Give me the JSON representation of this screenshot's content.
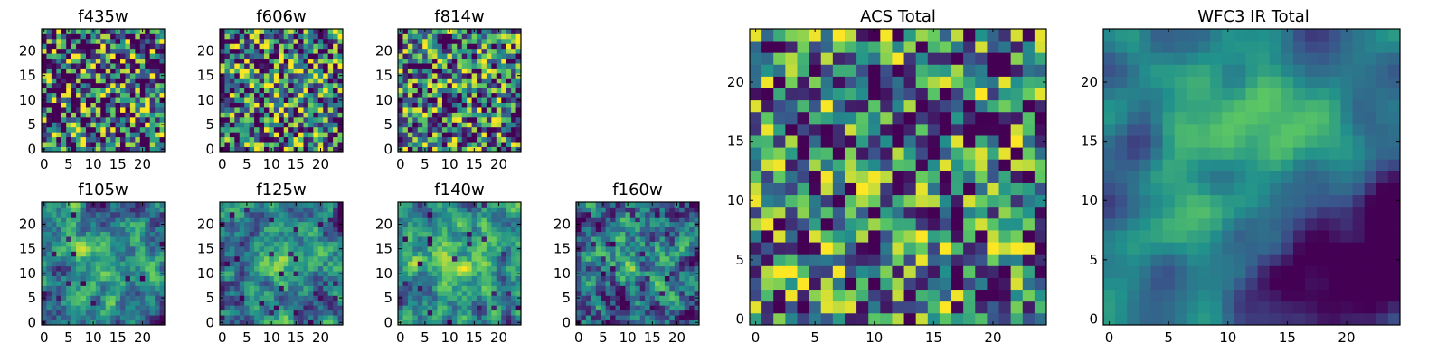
{
  "figure": {
    "background": "#ffffff",
    "colormap": "viridis",
    "colormap_stops": [
      "#440154",
      "#3b528b",
      "#21918c",
      "#5ec962",
      "#fde725"
    ]
  },
  "chart_data": [
    {
      "type": "heatmap",
      "title": "f435w",
      "size": 25,
      "xticks": [
        0,
        5,
        10,
        15,
        20
      ],
      "yticks": [
        0,
        5,
        10,
        15,
        20
      ],
      "xlim": [
        0,
        24
      ],
      "ylim": [
        0,
        24
      ],
      "seed": 11,
      "smooth": 0.1,
      "bright_bias": 0.55,
      "dark_frac": 0.05,
      "blob": null
    },
    {
      "type": "heatmap",
      "title": "f606w",
      "size": 25,
      "xticks": [
        0,
        5,
        10,
        15,
        20
      ],
      "yticks": [
        0,
        5,
        10,
        15,
        20
      ],
      "xlim": [
        0,
        24
      ],
      "ylim": [
        0,
        24
      ],
      "seed": 23,
      "smooth": 0.15,
      "bright_bias": 0.6,
      "dark_frac": 0.04,
      "blob": [
        13,
        12,
        3,
        0.15
      ]
    },
    {
      "type": "heatmap",
      "title": "f814w",
      "size": 25,
      "xticks": [
        0,
        5,
        10,
        15,
        20
      ],
      "yticks": [
        0,
        5,
        10,
        15,
        20
      ],
      "xlim": [
        0,
        24
      ],
      "ylim": [
        0,
        24
      ],
      "seed": 37,
      "smooth": 0.15,
      "bright_bias": 0.6,
      "dark_frac": 0.04,
      "blob": null
    },
    {
      "type": "heatmap",
      "title": "f105w",
      "size": 25,
      "xticks": [
        0,
        5,
        10,
        15,
        20
      ],
      "yticks": [
        0,
        5,
        10,
        15,
        20
      ],
      "xlim": [
        0,
        24
      ],
      "ylim": [
        0,
        24
      ],
      "seed": 41,
      "smooth": 0.55,
      "bright_bias": 0.55,
      "dark_frac": 0.03,
      "blob": [
        13,
        12,
        5,
        0.25
      ]
    },
    {
      "type": "heatmap",
      "title": "f125w",
      "size": 25,
      "xticks": [
        0,
        5,
        10,
        15,
        20
      ],
      "yticks": [
        0,
        5,
        10,
        15,
        20
      ],
      "xlim": [
        0,
        24
      ],
      "ylim": [
        0,
        24
      ],
      "seed": 53,
      "smooth": 0.55,
      "bright_bias": 0.55,
      "dark_frac": 0.04,
      "blob": [
        13,
        12,
        5,
        0.25
      ]
    },
    {
      "type": "heatmap",
      "title": "f140w",
      "size": 25,
      "xticks": [
        0,
        5,
        10,
        15,
        20
      ],
      "yticks": [
        0,
        5,
        10,
        15,
        20
      ],
      "xlim": [
        0,
        24
      ],
      "ylim": [
        0,
        24
      ],
      "seed": 67,
      "smooth": 0.55,
      "bright_bias": 0.62,
      "dark_frac": 0.02,
      "blob": [
        12,
        14,
        6,
        0.22
      ]
    },
    {
      "type": "heatmap",
      "title": "f160w",
      "size": 25,
      "xticks": [
        0,
        5,
        10,
        15,
        20
      ],
      "yticks": [
        0,
        5,
        10,
        15,
        20
      ],
      "xlim": [
        0,
        24
      ],
      "ylim": [
        0,
        24
      ],
      "seed": 79,
      "smooth": 0.45,
      "bright_bias": 0.45,
      "dark_frac": 0.05,
      "blob": [
        10,
        13,
        5,
        0.25
      ]
    },
    {
      "type": "heatmap",
      "title": "ACS Total",
      "size": 25,
      "xticks": [
        0,
        5,
        10,
        15,
        20
      ],
      "yticks": [
        0,
        5,
        10,
        15,
        20
      ],
      "xlim": [
        0,
        24
      ],
      "ylim": [
        0,
        24
      ],
      "seed": 97,
      "smooth": 0.2,
      "bright_bias": 0.62,
      "dark_frac": 0.03,
      "blob": null
    },
    {
      "type": "heatmap",
      "title": "WFC3 IR Total",
      "size": 25,
      "xticks": [
        0,
        5,
        10,
        15,
        20
      ],
      "yticks": [
        0,
        5,
        10,
        15,
        20
      ],
      "xlim": [
        0,
        24
      ],
      "ylim": [
        0,
        24
      ],
      "seed": 113,
      "smooth": 0.75,
      "bright_bias": 0.5,
      "dark_frac": 0.0,
      "blob": [
        13,
        13,
        7,
        0.35
      ],
      "dark_corner": [
        19,
        5,
        6,
        0.45
      ]
    }
  ]
}
